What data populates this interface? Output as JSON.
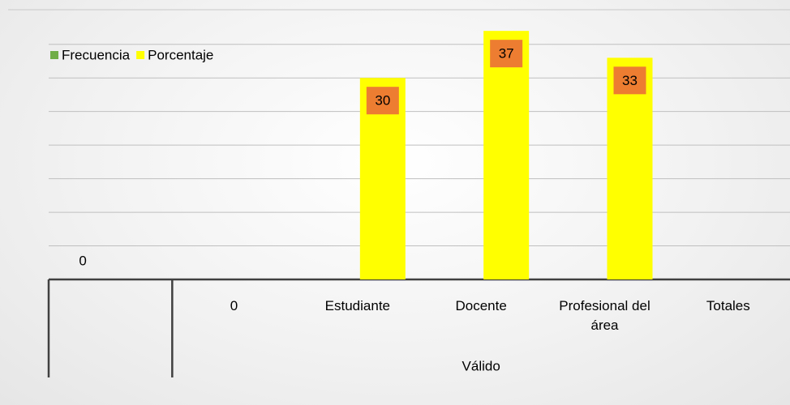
{
  "chart_data": {
    "type": "bar",
    "categories": [
      null,
      "0",
      "Estudiante",
      "Docente",
      "Profesional del área",
      "Totales"
    ],
    "group_label": "Válido",
    "series": [
      {
        "name": "Frecuencia",
        "color": "#70ad47",
        "values": [
          0,
          null,
          null,
          null,
          null,
          null
        ],
        "label_color": null
      },
      {
        "name": "Porcentaje",
        "color": "#ffff00",
        "values": [
          null,
          null,
          30,
          37,
          33,
          null
        ],
        "label_color": "#ed7d31"
      }
    ],
    "ylim": [
      0,
      37.5
    ],
    "yticks": [
      0,
      5,
      10,
      15,
      20,
      25,
      30,
      35
    ],
    "grid": true,
    "legend": "top-left"
  }
}
